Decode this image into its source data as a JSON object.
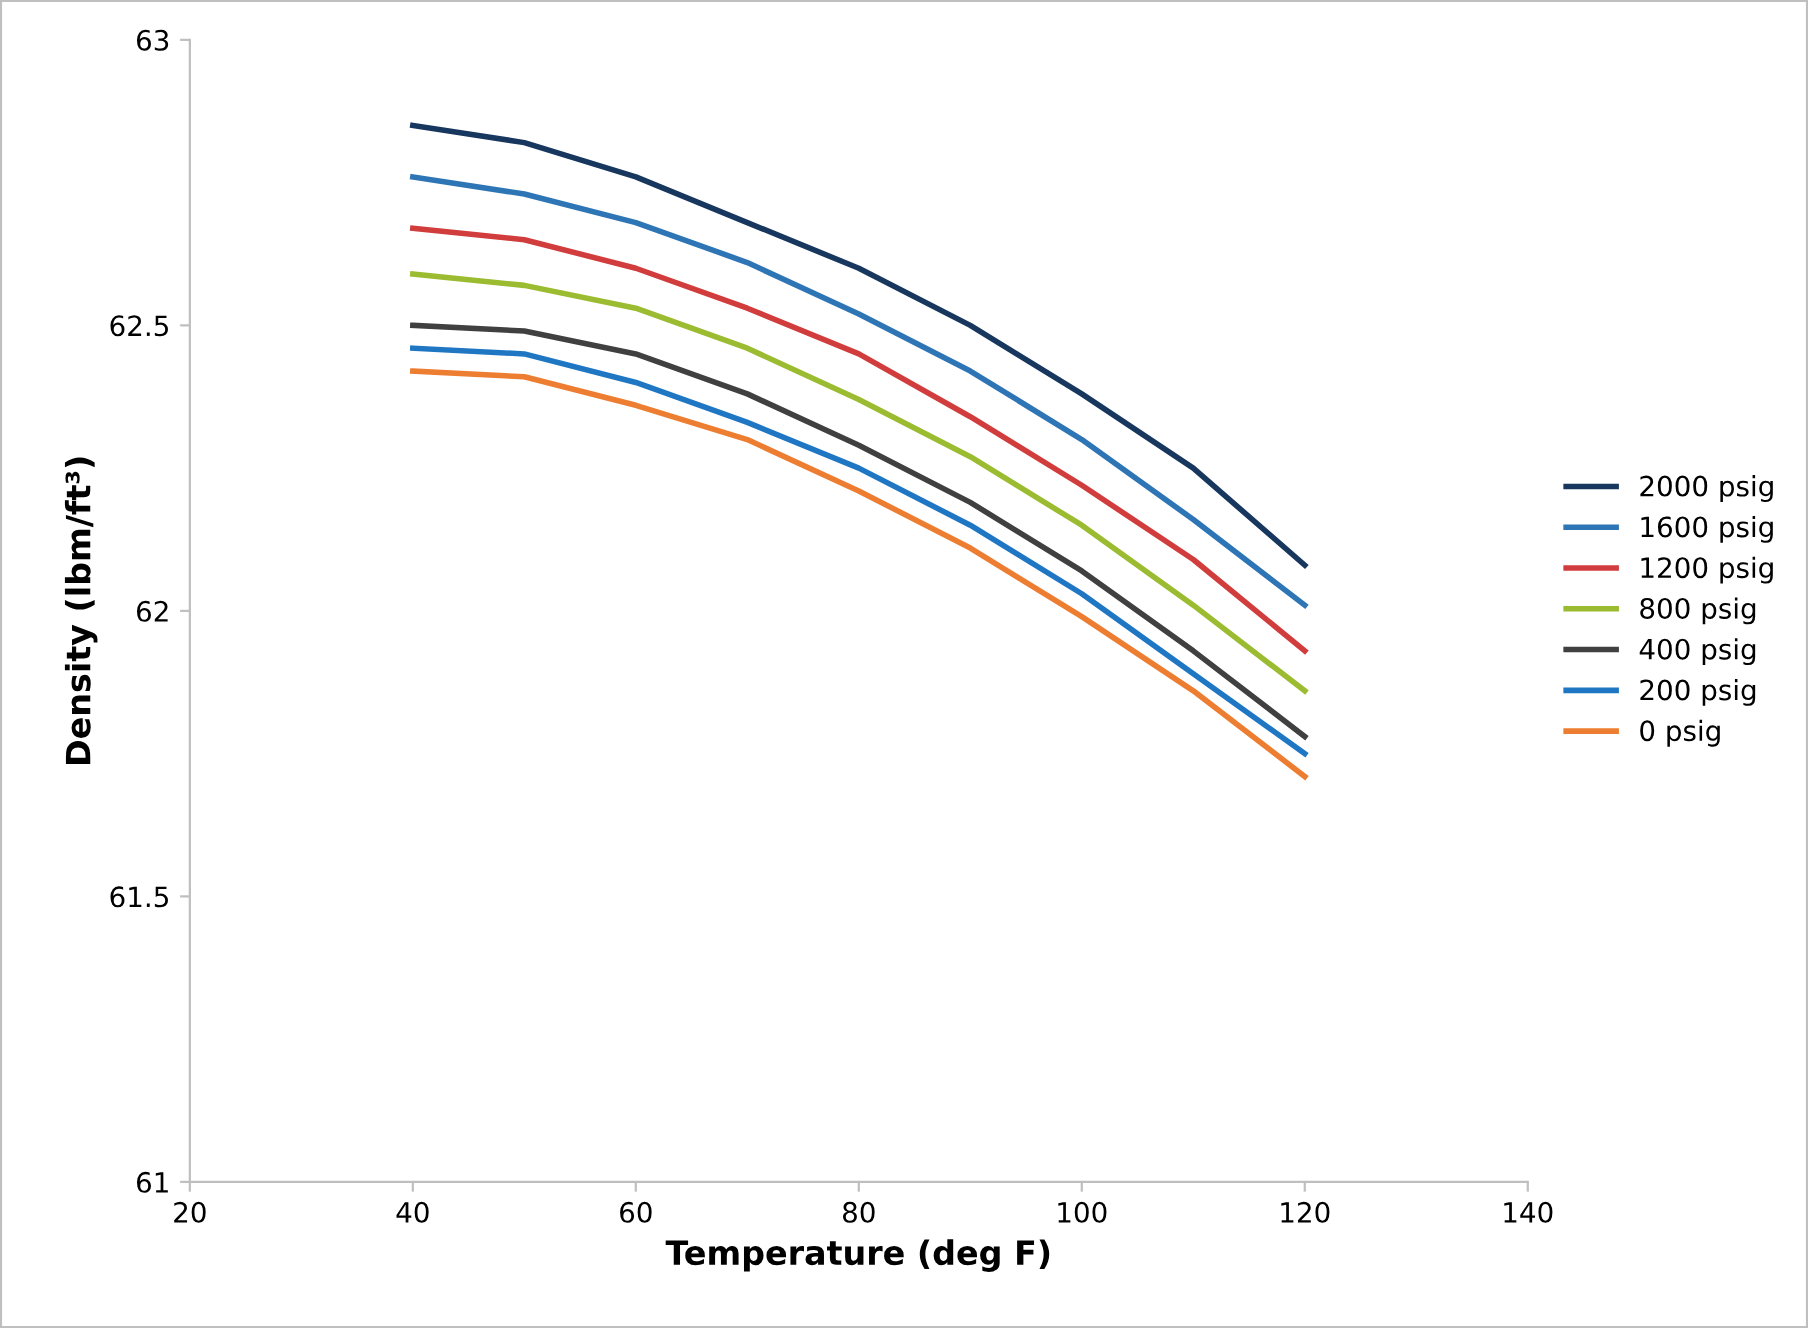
{
  "chart_data": {
    "type": "line",
    "xlabel": "Temperature (deg F)",
    "ylabel": "Density (lbm/ft³)",
    "x": [
      40,
      50,
      60,
      70,
      80,
      90,
      100,
      110,
      120
    ],
    "xlim": [
      20,
      140
    ],
    "xticks": [
      20,
      40,
      60,
      80,
      100,
      120,
      140
    ],
    "ylim": [
      61,
      63
    ],
    "yticks": [
      61,
      61.5,
      62,
      62.5,
      63
    ],
    "grid": false,
    "legend": "right",
    "marker": "none",
    "line_style": "solid",
    "series": [
      {
        "name": "2000 psig",
        "color": "#17375e",
        "values": [
          62.85,
          62.82,
          62.76,
          62.68,
          62.6,
          62.5,
          62.38,
          62.25,
          62.08
        ]
      },
      {
        "name": "1600 psig",
        "color": "#2e75b6",
        "values": [
          62.76,
          62.73,
          62.68,
          62.61,
          62.52,
          62.42,
          62.3,
          62.16,
          62.01
        ]
      },
      {
        "name": "1200 psig",
        "color": "#d13c3c",
        "values": [
          62.67,
          62.65,
          62.6,
          62.53,
          62.45,
          62.34,
          62.22,
          62.09,
          61.93
        ]
      },
      {
        "name": "800 psig",
        "color": "#9bbb30",
        "values": [
          62.59,
          62.57,
          62.53,
          62.46,
          62.37,
          62.27,
          62.15,
          62.01,
          61.86
        ]
      },
      {
        "name": "400 psig",
        "color": "#404040",
        "values": [
          62.5,
          62.49,
          62.45,
          62.38,
          62.29,
          62.19,
          62.07,
          61.93,
          61.78
        ]
      },
      {
        "name": "200 psig",
        "color": "#1f77c4",
        "values": [
          62.46,
          62.45,
          62.4,
          62.33,
          62.25,
          62.15,
          62.03,
          61.89,
          61.75
        ]
      },
      {
        "name": "0 psig",
        "color": "#ed7d31",
        "values": [
          62.42,
          62.41,
          62.36,
          62.3,
          62.21,
          62.11,
          61.99,
          61.86,
          61.71
        ]
      }
    ]
  }
}
